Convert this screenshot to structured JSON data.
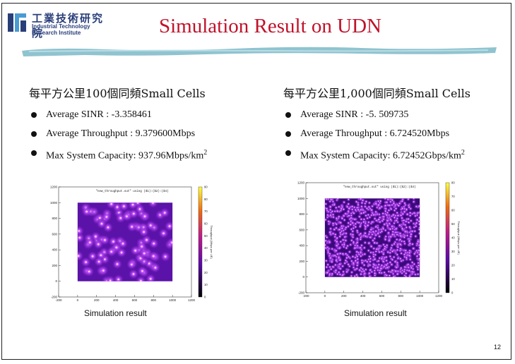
{
  "logo": {
    "name_cn": "工業技術研究院",
    "name_en": "Industrial Technology\nResearch Institute"
  },
  "slide": {
    "title": "Simulation Result on UDN",
    "page_number": "12"
  },
  "colors": {
    "title": "#c0122a",
    "brush": "#8fc3cf",
    "logo": "#2a3f7a"
  },
  "left": {
    "heading": "每平方公里100個同頻Small Cells",
    "bullets": [
      "Average SINR : -3.358461",
      "Average Throughput : 9.379600Mbps",
      "Max System Capacity: 937.96Mbps/km"
    ],
    "capacity_exponent": "2",
    "caption": "Simulation result"
  },
  "right": {
    "heading": "每平方公里1,000個同頻Small Cells",
    "bullets": [
      "Average SINR : -5. 509735",
      "Average Throughput : 6.724520Mbps",
      "Max System Capacity: 6.72452Gbps/km"
    ],
    "capacity_exponent": "2",
    "caption": "Simulation result"
  },
  "chart_data": [
    {
      "type": "heatmap",
      "title": "\"new_throughput.out\" using ($1):($2):($4)",
      "x_ticks": [
        "-200",
        "0",
        "200",
        "400",
        "600",
        "800",
        "1000",
        "1200"
      ],
      "y_ticks": [
        "-200",
        "0",
        "200",
        "400",
        "600",
        "800",
        "1000",
        "1200"
      ],
      "xlim": [
        -200,
        1200
      ],
      "ylim": [
        -200,
        1200
      ],
      "data_extent": [
        0,
        1000
      ],
      "colorbar_label": "Throughput (Mbps per UE)",
      "colorbar_ticks": [
        "0",
        "10",
        "20",
        "30",
        "40",
        "50",
        "60",
        "70",
        "80",
        "90"
      ],
      "colorbar_range": [
        0,
        90
      ],
      "cells": 100
    },
    {
      "type": "heatmap",
      "title": "\"new_throughput.out\" using ($1):($2):($4)",
      "x_ticks": [
        "-200",
        "0",
        "200",
        "400",
        "600",
        "800",
        "1000",
        "1200"
      ],
      "y_ticks": [
        "-200",
        "0",
        "200",
        "400",
        "600",
        "800",
        "1000",
        "1200"
      ],
      "xlim": [
        -200,
        1200
      ],
      "ylim": [
        -200,
        1200
      ],
      "data_extent": [
        0,
        1000
      ],
      "colorbar_label": "Throughput (Mbps per UE)",
      "colorbar_ticks": [
        "0",
        "10",
        "20",
        "30",
        "40",
        "50",
        "60",
        "70",
        "80"
      ],
      "colorbar_range": [
        0,
        80
      ],
      "cells": 1000
    }
  ]
}
